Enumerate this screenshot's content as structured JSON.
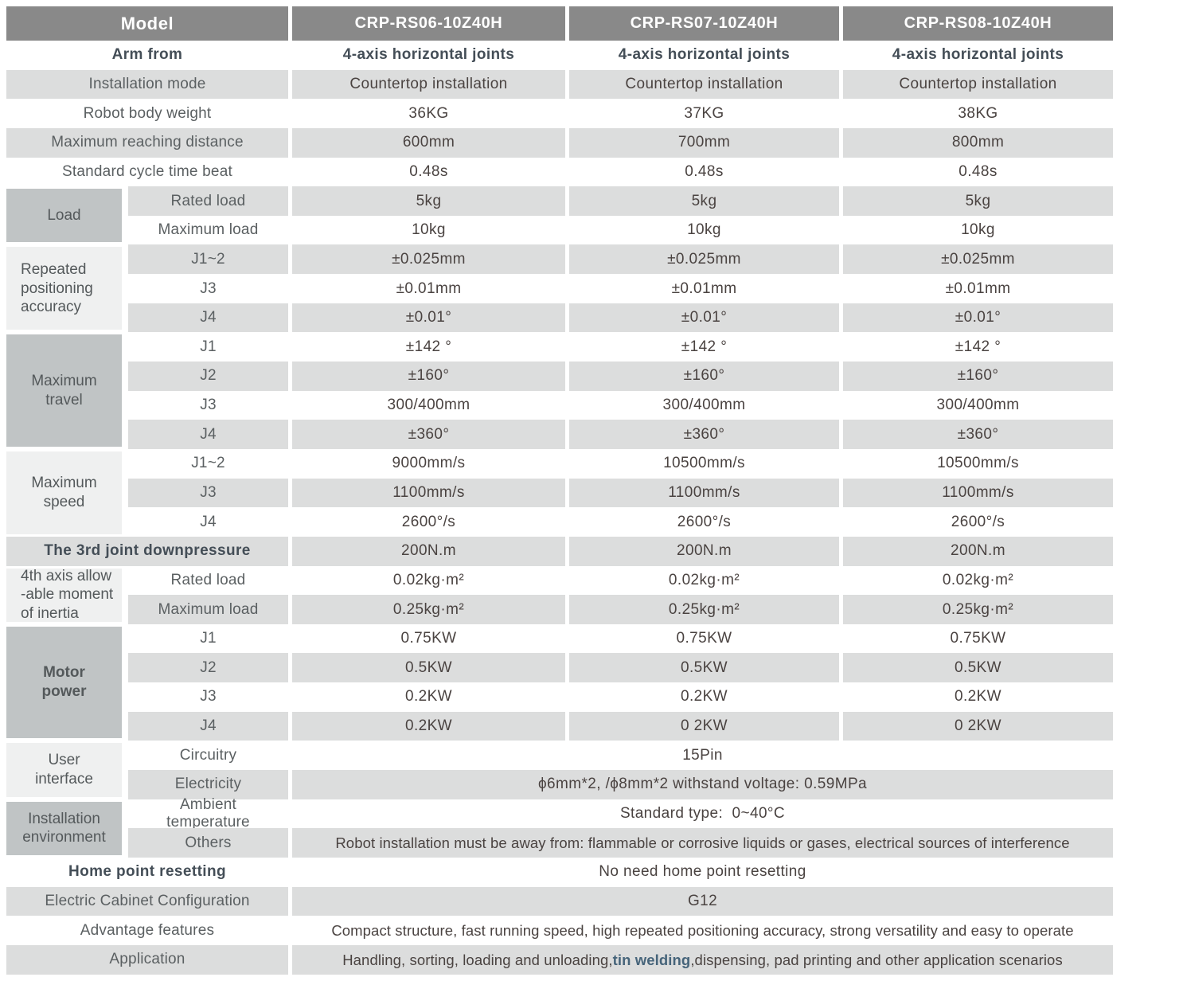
{
  "table": {
    "columns": {
      "header_label": "Model",
      "models": [
        "CRP-RS06-10Z40H",
        "CRP-RS07-10Z40H",
        "CRP-RS08-10Z40H"
      ]
    },
    "colors": {
      "header_bg": "#898989",
      "header_text": "#ffffff",
      "row_gray": "#dcdddd",
      "group_dark": "#c0c4c5",
      "group_light": "#eff0f0",
      "label_text": "#5b6062",
      "value_text": "#4a4341",
      "bold_slate": "#444e57",
      "highlight": "#46647a"
    },
    "groups": [
      {
        "label": "Load",
        "start": 5,
        "span": 2,
        "shade": "dark",
        "align": "center"
      },
      {
        "label": "Repeated\npositioning\naccuracy",
        "start": 7,
        "span": 3,
        "shade": "light",
        "align": "left"
      },
      {
        "label": "Maximum\ntravel",
        "start": 10,
        "span": 4,
        "shade": "dark",
        "align": "center"
      },
      {
        "label": "Maximum\nspeed",
        "start": 14,
        "span": 3,
        "shade": "light",
        "align": "center"
      },
      {
        "label": "4th axis allow\n-able moment\nof inertia",
        "start": 18,
        "span": 2,
        "shade": "light",
        "align": "left"
      },
      {
        "label": "Motor\npower",
        "start": 20,
        "span": 4,
        "shade": "dark",
        "align": "center",
        "bold": true
      },
      {
        "label": "User\ninterface",
        "start": 24,
        "span": 2,
        "shade": "light",
        "align": "center"
      },
      {
        "label": "Installation\nenvironment",
        "start": 26,
        "span": 2,
        "shade": "dark",
        "align": "center"
      }
    ],
    "rows": [
      {
        "label": "Arm from",
        "label_bold": true,
        "value_bold": true,
        "bg": "white",
        "values": [
          "4-axis horizontal joints",
          "4-axis horizontal joints",
          "4-axis horizontal joints"
        ]
      },
      {
        "label": "Installation mode",
        "bg": "gray",
        "values": [
          "Countertop installation",
          "Countertop installation",
          "Countertop installation"
        ]
      },
      {
        "label": "Robot body weight",
        "bg": "white",
        "values": [
          "36KG",
          "37KG",
          "38KG"
        ]
      },
      {
        "label": "Maximum reaching distance",
        "bg": "gray",
        "values": [
          "600mm",
          "700mm",
          "800mm"
        ]
      },
      {
        "label": "Standard cycle time beat",
        "bg": "white",
        "values": [
          "0.48s",
          "0.48s",
          "0.48s"
        ]
      },
      {
        "label": "Rated load",
        "bg": "gray",
        "grouped": true,
        "values": [
          "5kg",
          "5kg",
          "5kg"
        ]
      },
      {
        "label": "Maximum load",
        "bg": "white",
        "grouped": true,
        "values": [
          "10kg",
          "10kg",
          "10kg"
        ]
      },
      {
        "label": "J1~2",
        "bg": "gray",
        "grouped": true,
        "values": [
          "±0.025mm",
          "±0.025mm",
          "±0.025mm"
        ]
      },
      {
        "label": "J3",
        "bg": "white",
        "grouped": true,
        "values": [
          "±0.01mm",
          "±0.01mm",
          "±0.01mm"
        ]
      },
      {
        "label": "J4",
        "bg": "gray",
        "grouped": true,
        "values": [
          "±0.01°",
          "±0.01°",
          "±0.01°"
        ]
      },
      {
        "label": "J1",
        "bg": "white",
        "grouped": true,
        "values": [
          "±142 °",
          "±142 °",
          "±142 °"
        ]
      },
      {
        "label": "J2",
        "bg": "gray",
        "grouped": true,
        "values": [
          "±160°",
          "±160°",
          "±160°"
        ]
      },
      {
        "label": "J3",
        "bg": "white",
        "grouped": true,
        "values": [
          "300/400mm",
          "300/400mm",
          "300/400mm"
        ]
      },
      {
        "label": "J4",
        "bg": "gray",
        "grouped": true,
        "values": [
          "±360°",
          "±360°",
          "±360°"
        ]
      },
      {
        "label": "J1~2",
        "bg": "white",
        "grouped": true,
        "values": [
          "9000mm/s",
          "10500mm/s",
          "10500mm/s"
        ]
      },
      {
        "label": "J3",
        "bg": "gray",
        "grouped": true,
        "values": [
          "1100mm/s",
          "1100mm/s",
          "1100mm/s"
        ]
      },
      {
        "label": "J4",
        "bg": "white",
        "grouped": true,
        "values": [
          "2600°/s",
          "2600°/s",
          "2600°/s"
        ]
      },
      {
        "label": "The 3rd joint downpressure",
        "label_bold": true,
        "bg": "gray",
        "values": [
          "200N.m",
          "200N.m",
          "200N.m"
        ]
      },
      {
        "label": "Rated load",
        "bg": "white",
        "grouped": true,
        "values": [
          "0.02kg·m²",
          "0.02kg·m²",
          "0.02kg·m²"
        ]
      },
      {
        "label": "Maximum load",
        "bg": "gray",
        "grouped": true,
        "values": [
          "0.25kg·m²",
          "0.25kg·m²",
          "0.25kg·m²"
        ]
      },
      {
        "label": "J1",
        "bg": "white",
        "grouped": true,
        "values": [
          "0.75KW",
          "0.75KW",
          "0.75KW"
        ]
      },
      {
        "label": "J2",
        "bg": "gray",
        "grouped": true,
        "values": [
          "0.5KW",
          "0.5KW",
          "0.5KW"
        ]
      },
      {
        "label": "J3",
        "bg": "white",
        "grouped": true,
        "values": [
          "0.2KW",
          "0.2KW",
          "0.2KW"
        ]
      },
      {
        "label": "J4",
        "bg": "gray",
        "grouped": true,
        "values": [
          "0.2KW",
          "0 2KW",
          "0 2KW"
        ]
      },
      {
        "label": "Circuitry",
        "bg": "white",
        "grouped": true,
        "span": "15Pin"
      },
      {
        "label": "Electricity",
        "bg": "gray",
        "grouped": true,
        "span": "ϕ6mm*2, /ϕ8mm*2  withstand voltage: 0.59MPa"
      },
      {
        "label": "Ambient\ntemperature",
        "bg": "white",
        "grouped": true,
        "span": "Standard type:  0~40°C"
      },
      {
        "label": "Others",
        "bg": "gray",
        "grouped": true,
        "small": true,
        "span": "Robot installation must be away from: flammable or corrosive liquids or gases, electrical sources of interference"
      },
      {
        "label": "Home point resetting",
        "label_bold": true,
        "bg": "white",
        "span": "No need home point resetting"
      },
      {
        "label": "Electric Cabinet Configuration",
        "bg": "gray",
        "span": "G12"
      },
      {
        "label": "Advantage features",
        "bg": "white",
        "small": true,
        "span": "Compact structure, fast running speed, high repeated positioning accuracy, strong versatility and easy to operate"
      },
      {
        "label": "Application",
        "bg": "gray",
        "small": true,
        "span_parts": [
          "Handling, sorting, loading and unloading,",
          "tin welding",
          ",dispensing, pad printing and other application scenarios"
        ]
      }
    ]
  }
}
